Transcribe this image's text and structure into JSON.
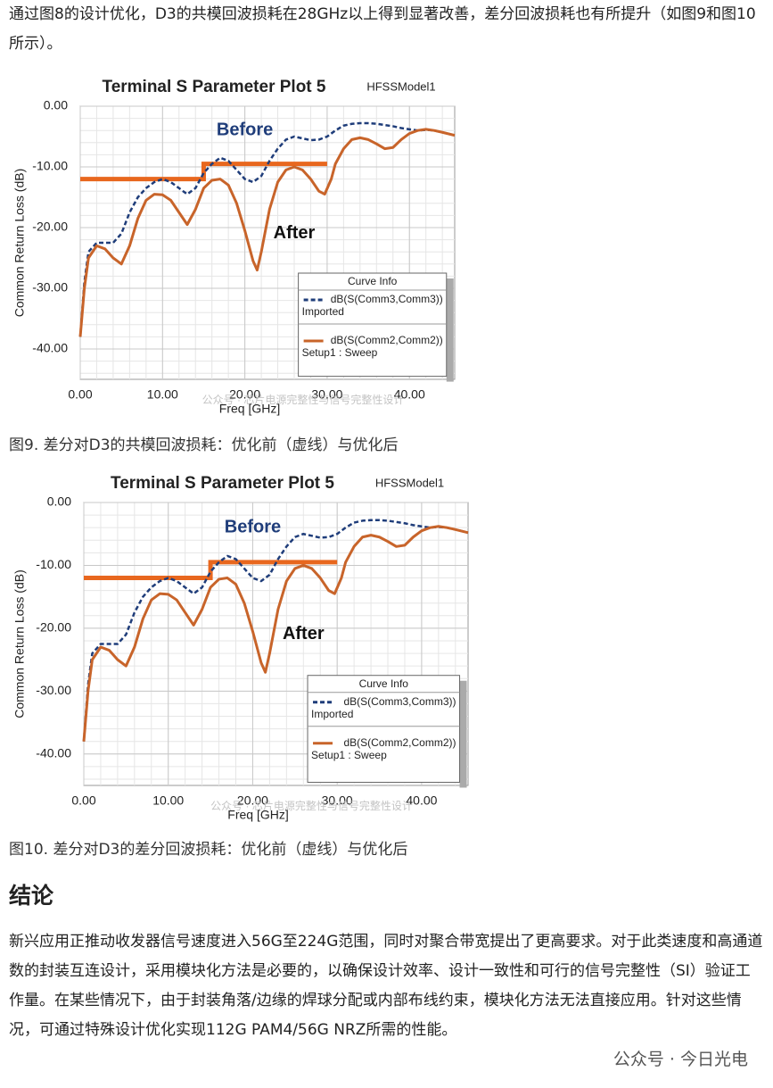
{
  "intro": "通过图8的设计优化，D3的共模回波损耗在28GHz以上得到显著改善，差分回波损耗也有所提升（如图9和图10所示）。",
  "captions": [
    "图9. 差分对D3的共模回波损耗：优化前（虚线）与优化后",
    "图10. 差分对D3的差分回波损耗：优化前（虚线）与优化后"
  ],
  "heading": "结论",
  "conclusion": "新兴应用正推动收发器信号速度进入56G至224G范围，同时对聚合带宽提出了更高要求。对于此类速度和高通道数的封装互连设计，采用模块化方法是必要的，以确保设计效率、设计一致性和可行的信号完整性（SI）验证工作量。在某些情况下，由于封装角落/边缘的焊球分配或内部布线约束，模块化方法无法直接应用。针对这些情况，可通过特殊设计优化实现112G PAM4/56G NRZ所需的性能。",
  "footer": "公众号 · 今日光电",
  "chart_data": [
    {
      "type": "line",
      "title": "Terminal S Parameter Plot 5",
      "subtitle": "HFSSModel1",
      "x_label": "Freq [GHz]",
      "y_label": "Common Return Loss (dB)",
      "xlim": [
        0,
        45.5
      ],
      "ylim": [
        -45,
        0
      ],
      "xticks": [
        {
          "value": 0,
          "label": "0.00"
        },
        {
          "value": 10,
          "label": "10.00"
        },
        {
          "value": 20,
          "label": "20.00"
        },
        {
          "value": 30,
          "label": "30.00"
        },
        {
          "value": 40,
          "label": "40.00"
        }
      ],
      "yticks": [
        {
          "value": 0,
          "label": "0.00"
        },
        {
          "value": -10,
          "label": "-10.00"
        },
        {
          "value": -20,
          "label": "-20.00"
        },
        {
          "value": -30,
          "label": "-30.00"
        },
        {
          "value": -40,
          "label": "-40.00"
        }
      ],
      "grid": true,
      "legend_title": "Curve Info",
      "annotations": [
        "Before",
        "After"
      ],
      "watermark": "公众号 · 芯片电源完整性与信号完整性设计",
      "series": [
        {
          "name": "dB(S(Comm3,Comm3))",
          "source": "Imported",
          "color": "#1f3d7a",
          "dashed": true,
          "x": [
            0,
            0.5,
            1,
            2,
            3,
            4,
            5,
            6,
            7,
            8,
            9,
            10,
            11,
            12,
            13,
            14,
            15,
            16,
            17,
            18,
            19,
            20,
            21,
            22,
            23,
            24,
            25,
            26,
            27,
            28,
            29,
            30,
            31,
            32,
            33,
            34,
            35,
            36,
            37,
            38,
            39,
            40,
            41,
            42,
            43,
            44,
            45.5
          ],
          "values": [
            -38,
            -29,
            -24,
            -22.5,
            -22.5,
            -22.5,
            -21,
            -17.5,
            -15,
            -13.5,
            -12.5,
            -12,
            -12.5,
            -13.5,
            -14.5,
            -13.5,
            -11,
            -9.5,
            -8.5,
            -9,
            -10.5,
            -12,
            -12.5,
            -11.5,
            -9,
            -7,
            -5.5,
            -5,
            -5.3,
            -5.6,
            -5.5,
            -5,
            -4,
            -3.2,
            -2.9,
            -2.8,
            -2.8,
            -2.9,
            -3.1,
            -3.3,
            -3.6,
            -3.8,
            -4,
            -3.9,
            -4,
            -4.3,
            -4.8
          ]
        },
        {
          "name": "dB(S(Comm2,Comm2))",
          "source": "Setup1 : Sweep",
          "color": "#c8642a",
          "dashed": false,
          "x": [
            0,
            0.5,
            1,
            2,
            3,
            4,
            5,
            6,
            7,
            8,
            9,
            10,
            11,
            12,
            13,
            14,
            15,
            16,
            17,
            18,
            19,
            20,
            21,
            21.5,
            22,
            23,
            24,
            25,
            26,
            27,
            28,
            29,
            29.7,
            30.5,
            31,
            32,
            33,
            34,
            35,
            36,
            37,
            38,
            39,
            40,
            41,
            42,
            43,
            44,
            45.5
          ],
          "values": [
            -38,
            -30,
            -25,
            -23,
            -23.5,
            -25,
            -26,
            -23,
            -18.5,
            -15.5,
            -14.5,
            -14.6,
            -15.5,
            -17.5,
            -19.5,
            -17,
            -13.5,
            -12.2,
            -12,
            -13,
            -16,
            -20.5,
            -25.5,
            -27,
            -24,
            -17,
            -12.5,
            -10.5,
            -10,
            -10.5,
            -12,
            -14,
            -14.5,
            -12,
            -9.5,
            -7,
            -5.5,
            -5.2,
            -5.5,
            -6.2,
            -7,
            -6.8,
            -5.5,
            -4.5,
            -4,
            -3.8,
            -4,
            -4.3,
            -4.8
          ]
        }
      ],
      "limit_line": {
        "color": "#e8671e",
        "x": [
          0,
          15,
          15,
          30
        ],
        "values": [
          -12,
          -12,
          -9.5,
          -9.5
        ]
      }
    },
    {
      "type": "line",
      "title": "Terminal S Parameter Plot 5",
      "subtitle": "HFSSModel1",
      "x_label": "Freq [GHz]",
      "y_label": "Common Return Loss (dB)",
      "xlim": [
        0,
        45.5
      ],
      "ylim": [
        -45,
        0
      ],
      "xticks": [
        {
          "value": 0,
          "label": "0.00"
        },
        {
          "value": 10,
          "label": "10.00"
        },
        {
          "value": 20,
          "label": "20.00"
        },
        {
          "value": 30,
          "label": "30.00"
        },
        {
          "value": 40,
          "label": "40.00"
        }
      ],
      "yticks": [
        {
          "value": 0,
          "label": "0.00"
        },
        {
          "value": -10,
          "label": "-10.00"
        },
        {
          "value": -20,
          "label": "-20.00"
        },
        {
          "value": -30,
          "label": "-30.00"
        },
        {
          "value": -40,
          "label": "-40.00"
        }
      ],
      "grid": true,
      "legend_title": "Curve Info",
      "annotations": [
        "Before",
        "After"
      ],
      "watermark": "公众号 · 芯片电源完整性与信号完整性设计",
      "series": [
        {
          "name": "dB(S(Comm3,Comm3))",
          "source": "Imported",
          "color": "#1f3d7a",
          "dashed": true,
          "x": [
            0,
            0.5,
            1,
            2,
            3,
            4,
            5,
            6,
            7,
            8,
            9,
            10,
            11,
            12,
            13,
            14,
            15,
            16,
            17,
            18,
            19,
            20,
            21,
            22,
            23,
            24,
            25,
            26,
            27,
            28,
            29,
            30,
            31,
            32,
            33,
            34,
            35,
            36,
            37,
            38,
            39,
            40,
            41,
            42,
            43,
            44,
            45.5
          ],
          "values": [
            -38,
            -29,
            -24,
            -22.5,
            -22.5,
            -22.5,
            -21,
            -17.5,
            -15,
            -13.5,
            -12.5,
            -12,
            -12.5,
            -13.5,
            -14.5,
            -13.5,
            -11,
            -9.5,
            -8.5,
            -9,
            -10.5,
            -12,
            -12.5,
            -11.5,
            -9,
            -7,
            -5.5,
            -5,
            -5.3,
            -5.6,
            -5.5,
            -5,
            -4,
            -3.2,
            -2.9,
            -2.8,
            -2.8,
            -2.9,
            -3.1,
            -3.3,
            -3.6,
            -3.8,
            -4,
            -3.9,
            -4,
            -4.3,
            -4.8
          ]
        },
        {
          "name": "dB(S(Comm2,Comm2))",
          "source": "Setup1 : Sweep",
          "color": "#c8642a",
          "dashed": false,
          "x": [
            0,
            0.5,
            1,
            2,
            3,
            4,
            5,
            6,
            7,
            8,
            9,
            10,
            11,
            12,
            13,
            14,
            15,
            16,
            17,
            18,
            19,
            20,
            21,
            21.5,
            22,
            23,
            24,
            25,
            26,
            27,
            28,
            29,
            29.7,
            30.5,
            31,
            32,
            33,
            34,
            35,
            36,
            37,
            38,
            39,
            40,
            41,
            42,
            43,
            44,
            45.5
          ],
          "values": [
            -38,
            -30,
            -25,
            -23,
            -23.5,
            -25,
            -26,
            -23,
            -18.5,
            -15.5,
            -14.5,
            -14.6,
            -15.5,
            -17.5,
            -19.5,
            -17,
            -13.5,
            -12.2,
            -12,
            -13,
            -16,
            -20.5,
            -25.5,
            -27,
            -24,
            -17,
            -12.5,
            -10.5,
            -10,
            -10.5,
            -12,
            -14,
            -14.5,
            -12,
            -9.5,
            -7,
            -5.5,
            -5.2,
            -5.5,
            -6.2,
            -7,
            -6.8,
            -5.5,
            -4.5,
            -4,
            -3.8,
            -4,
            -4.3,
            -4.8
          ]
        }
      ],
      "limit_line": {
        "color": "#e8671e",
        "x": [
          0,
          15,
          15,
          30
        ],
        "values": [
          -12,
          -12,
          -9.5,
          -9.5
        ]
      }
    }
  ]
}
